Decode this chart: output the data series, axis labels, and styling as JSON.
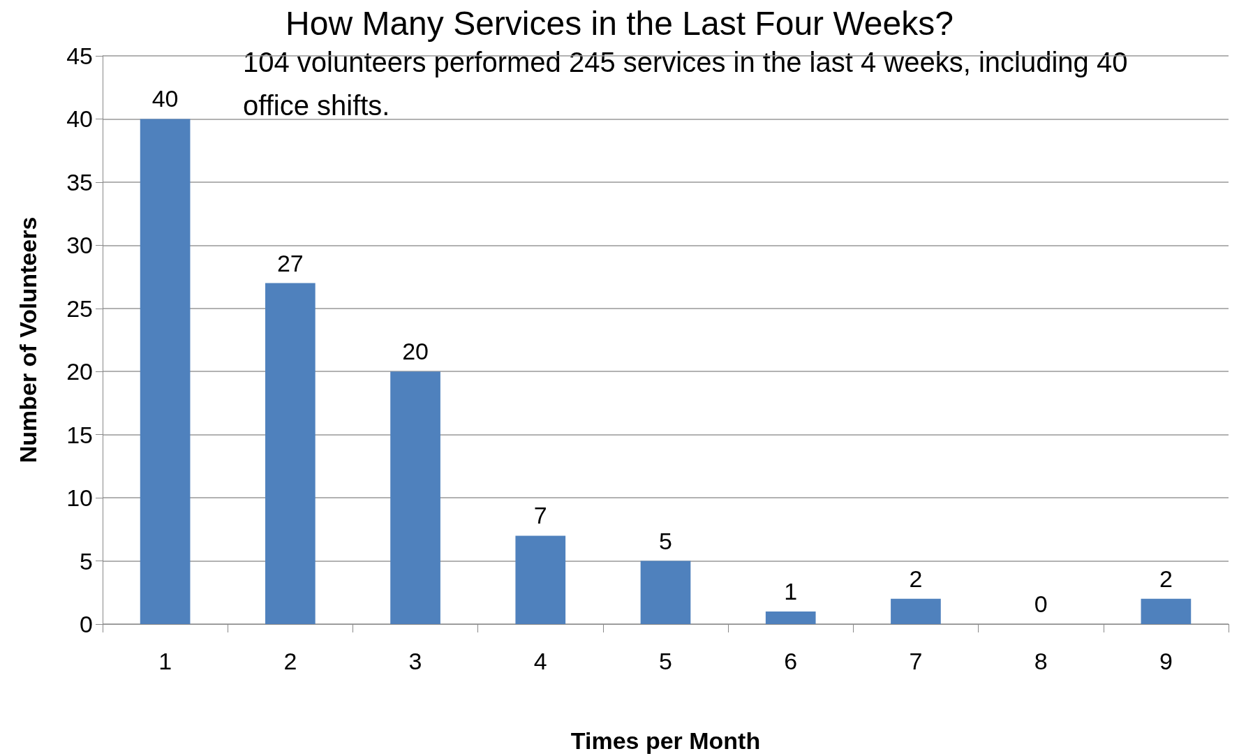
{
  "chart_data": {
    "type": "bar",
    "title": "How Many Services in the Last Four Weeks?",
    "xlabel": "Times per Month",
    "ylabel": "Number of Volunteers",
    "annotations": [
      "104 volunteers performed 245 services in the last 4 weeks, including 40 office shifts."
    ],
    "categories": [
      "1",
      "2",
      "3",
      "4",
      "5",
      "6",
      "7",
      "8",
      "9"
    ],
    "values": [
      40,
      27,
      20,
      7,
      5,
      1,
      2,
      0,
      2
    ],
    "color": "#4f81bd",
    "ylim": [
      0,
      45
    ],
    "yticks": [
      0,
      5,
      10,
      15,
      20,
      25,
      30,
      35,
      40,
      45
    ],
    "grid": "y",
    "data_labels": true
  }
}
